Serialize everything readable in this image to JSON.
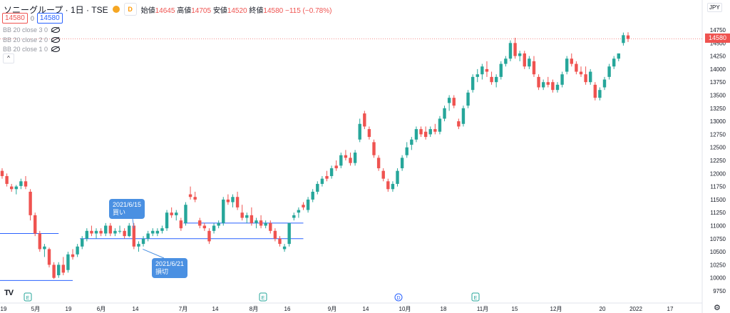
{
  "header": {
    "symbol": "ソニーグループ · 1日 · TSE",
    "dd_label": "D",
    "open_label": "始値",
    "open_value": "14645",
    "high_label": "高値",
    "high_value": "14705",
    "low_label": "安値",
    "low_value": "14520",
    "close_label": "終値",
    "close_value": "14580",
    "change": "−115 (−0.78%)",
    "sell_price": "14580",
    "spread": "0",
    "buy_price": "14580"
  },
  "indicators": [
    "BB 20 close 3 0",
    "BB 20 close 2 0",
    "BB 20 close 1 0"
  ],
  "collapse_icon": "^",
  "currency": "JPY",
  "current_price_label": "14580",
  "tv_logo": "TV",
  "settings_icon": "⚙",
  "colors": {
    "up": "#26a69a",
    "down": "#ef5350",
    "line": "#2962ff",
    "callout": "#4a90e2"
  },
  "callouts": [
    {
      "id": "buy",
      "text": "2021/6/15\n買い"
    },
    {
      "id": "cut",
      "text": "2021/6/21\n損切"
    }
  ],
  "chart_data": {
    "type": "candlestick",
    "y_axis": {
      "min": 9750,
      "max": 14750,
      "ticks": [
        9750,
        10000,
        10250,
        10500,
        10750,
        11000,
        11250,
        11500,
        11750,
        12000,
        12250,
        12500,
        12750,
        13000,
        13250,
        13500,
        13750,
        14000,
        14250,
        14500,
        14750
      ]
    },
    "x_axis": {
      "ticks": [
        "19",
        "5月",
        "19",
        "6月",
        "14",
        "7月",
        "14",
        "8月",
        "16",
        "9月",
        "14",
        "10月",
        "18",
        "11月",
        "15",
        "12月",
        "20",
        "2022",
        "17"
      ]
    },
    "horizontal_lines": [
      {
        "price": 10850,
        "from": 0,
        "to": 12
      },
      {
        "price": 9950,
        "from": 0,
        "to": 15
      },
      {
        "price": 11050,
        "from": 39,
        "to": 64
      },
      {
        "price": 10750,
        "from": 17,
        "to": 64
      }
    ],
    "events": [
      "E",
      "E",
      "D",
      "E"
    ],
    "candles": [
      {
        "o": 12050,
        "h": 12100,
        "l": 11900,
        "c": 11950
      },
      {
        "o": 11950,
        "h": 12000,
        "l": 11750,
        "c": 11800
      },
      {
        "o": 11750,
        "h": 11800,
        "l": 11650,
        "c": 11700
      },
      {
        "o": 11700,
        "h": 11780,
        "l": 11600,
        "c": 11750
      },
      {
        "o": 11760,
        "h": 11900,
        "l": 11700,
        "c": 11850
      },
      {
        "o": 11850,
        "h": 11950,
        "l": 11700,
        "c": 11750
      },
      {
        "o": 11650,
        "h": 11700,
        "l": 11100,
        "c": 11200
      },
      {
        "o": 11200,
        "h": 11250,
        "l": 10800,
        "c": 10850
      },
      {
        "o": 10850,
        "h": 10900,
        "l": 10500,
        "c": 10550
      },
      {
        "o": 10550,
        "h": 10650,
        "l": 10400,
        "c": 10600
      },
      {
        "o": 10550,
        "h": 10580,
        "l": 10200,
        "c": 10250
      },
      {
        "o": 10250,
        "h": 10300,
        "l": 9980,
        "c": 10000
      },
      {
        "o": 10050,
        "h": 10300,
        "l": 10000,
        "c": 10250
      },
      {
        "o": 10250,
        "h": 10400,
        "l": 10050,
        "c": 10100
      },
      {
        "o": 10150,
        "h": 10500,
        "l": 10100,
        "c": 10450
      },
      {
        "o": 10450,
        "h": 10550,
        "l": 10350,
        "c": 10400
      },
      {
        "o": 10450,
        "h": 10650,
        "l": 10400,
        "c": 10600
      },
      {
        "o": 10600,
        "h": 10800,
        "l": 10550,
        "c": 10750
      },
      {
        "o": 10750,
        "h": 10950,
        "l": 10700,
        "c": 10900
      },
      {
        "o": 10900,
        "h": 11000,
        "l": 10800,
        "c": 10850
      },
      {
        "o": 10850,
        "h": 10950,
        "l": 10750,
        "c": 10900
      },
      {
        "o": 10900,
        "h": 10950,
        "l": 10800,
        "c": 10850
      },
      {
        "o": 10850,
        "h": 11050,
        "l": 10800,
        "c": 11000
      },
      {
        "o": 11000,
        "h": 11050,
        "l": 10800,
        "c": 10850
      },
      {
        "o": 10850,
        "h": 10950,
        "l": 10800,
        "c": 10900
      },
      {
        "o": 10900,
        "h": 11000,
        "l": 10850,
        "c": 10900
      },
      {
        "o": 10900,
        "h": 10950,
        "l": 10750,
        "c": 10800
      },
      {
        "o": 10800,
        "h": 11050,
        "l": 10780,
        "c": 11000
      },
      {
        "o": 11000,
        "h": 11050,
        "l": 10550,
        "c": 10600
      },
      {
        "o": 10600,
        "h": 10700,
        "l": 10500,
        "c": 10650
      },
      {
        "o": 10650,
        "h": 10800,
        "l": 10600,
        "c": 10750
      },
      {
        "o": 10750,
        "h": 10900,
        "l": 10700,
        "c": 10850
      },
      {
        "o": 10850,
        "h": 10950,
        "l": 10800,
        "c": 10900
      },
      {
        "o": 10850,
        "h": 10950,
        "l": 10800,
        "c": 10900
      },
      {
        "o": 10900,
        "h": 11000,
        "l": 10850,
        "c": 10950
      },
      {
        "o": 10950,
        "h": 11300,
        "l": 10900,
        "c": 11250
      },
      {
        "o": 11250,
        "h": 11350,
        "l": 11150,
        "c": 11200
      },
      {
        "o": 11200,
        "h": 11300,
        "l": 11100,
        "c": 11250
      },
      {
        "o": 11100,
        "h": 11150,
        "l": 10900,
        "c": 10950
      },
      {
        "o": 11050,
        "h": 11450,
        "l": 11000,
        "c": 11400
      },
      {
        "o": 11600,
        "h": 11750,
        "l": 11500,
        "c": 11550
      },
      {
        "o": 11550,
        "h": 11650,
        "l": 11450,
        "c": 11500
      },
      {
        "o": 11100,
        "h": 11150,
        "l": 10950,
        "c": 11000
      },
      {
        "o": 11000,
        "h": 11050,
        "l": 10900,
        "c": 10950
      },
      {
        "o": 10900,
        "h": 10950,
        "l": 10650,
        "c": 10700
      },
      {
        "o": 10900,
        "h": 11050,
        "l": 10850,
        "c": 11000
      },
      {
        "o": 11000,
        "h": 11100,
        "l": 10950,
        "c": 11050
      },
      {
        "o": 11050,
        "h": 11550,
        "l": 11000,
        "c": 11500
      },
      {
        "o": 11500,
        "h": 11600,
        "l": 11400,
        "c": 11450
      },
      {
        "o": 11450,
        "h": 11600,
        "l": 11350,
        "c": 11550
      },
      {
        "o": 11550,
        "h": 11650,
        "l": 11300,
        "c": 11350
      },
      {
        "o": 11250,
        "h": 11400,
        "l": 11100,
        "c": 11150
      },
      {
        "o": 11150,
        "h": 11250,
        "l": 11050,
        "c": 11200
      },
      {
        "o": 11200,
        "h": 11350,
        "l": 11000,
        "c": 11050
      },
      {
        "o": 11050,
        "h": 11150,
        "l": 10950,
        "c": 11100
      },
      {
        "o": 11100,
        "h": 11200,
        "l": 10950,
        "c": 11000
      },
      {
        "o": 11000,
        "h": 11100,
        "l": 10950,
        "c": 11050
      },
      {
        "o": 11050,
        "h": 11100,
        "l": 10850,
        "c": 10900
      },
      {
        "o": 10900,
        "h": 10950,
        "l": 10700,
        "c": 10750
      },
      {
        "o": 10750,
        "h": 10800,
        "l": 10600,
        "c": 10650
      },
      {
        "o": 10550,
        "h": 10650,
        "l": 10500,
        "c": 10600
      },
      {
        "o": 10650,
        "h": 11050,
        "l": 10600,
        "c": 11050
      },
      {
        "o": 11150,
        "h": 11250,
        "l": 11100,
        "c": 11200
      },
      {
        "o": 11250,
        "h": 11350,
        "l": 11150,
        "c": 11300
      },
      {
        "o": 11400,
        "h": 11450,
        "l": 11300,
        "c": 11350
      },
      {
        "o": 11300,
        "h": 11550,
        "l": 11250,
        "c": 11500
      },
      {
        "o": 11500,
        "h": 11700,
        "l": 11450,
        "c": 11650
      },
      {
        "o": 11650,
        "h": 11850,
        "l": 11600,
        "c": 11800
      },
      {
        "o": 11800,
        "h": 11950,
        "l": 11750,
        "c": 11900
      },
      {
        "o": 11950,
        "h": 12050,
        "l": 11850,
        "c": 11900
      },
      {
        "o": 11950,
        "h": 12150,
        "l": 11900,
        "c": 12100
      },
      {
        "o": 12150,
        "h": 12250,
        "l": 12050,
        "c": 12100
      },
      {
        "o": 12150,
        "h": 12400,
        "l": 12100,
        "c": 12350
      },
      {
        "o": 12350,
        "h": 12450,
        "l": 12250,
        "c": 12300
      },
      {
        "o": 12300,
        "h": 12400,
        "l": 12150,
        "c": 12200
      },
      {
        "o": 12200,
        "h": 12450,
        "l": 12150,
        "c": 12400
      },
      {
        "o": 12650,
        "h": 13050,
        "l": 12600,
        "c": 12950
      },
      {
        "o": 13150,
        "h": 13200,
        "l": 12850,
        "c": 12900
      },
      {
        "o": 12850,
        "h": 12900,
        "l": 12650,
        "c": 12700
      },
      {
        "o": 12600,
        "h": 12650,
        "l": 12300,
        "c": 12350
      },
      {
        "o": 12300,
        "h": 12350,
        "l": 12050,
        "c": 12100
      },
      {
        "o": 12050,
        "h": 12100,
        "l": 11850,
        "c": 11900
      },
      {
        "o": 11850,
        "h": 11900,
        "l": 11650,
        "c": 11700
      },
      {
        "o": 11700,
        "h": 11850,
        "l": 11650,
        "c": 11800
      },
      {
        "o": 11800,
        "h": 12100,
        "l": 11750,
        "c": 12050
      },
      {
        "o": 12100,
        "h": 12350,
        "l": 12050,
        "c": 12300
      },
      {
        "o": 12350,
        "h": 12600,
        "l": 12300,
        "c": 12500
      },
      {
        "o": 12550,
        "h": 12700,
        "l": 12450,
        "c": 12650
      },
      {
        "o": 12650,
        "h": 12900,
        "l": 12600,
        "c": 12850
      },
      {
        "o": 12850,
        "h": 12900,
        "l": 12700,
        "c": 12750
      },
      {
        "o": 12800,
        "h": 12900,
        "l": 12650,
        "c": 12700
      },
      {
        "o": 12750,
        "h": 12900,
        "l": 12700,
        "c": 12850
      },
      {
        "o": 12850,
        "h": 12950,
        "l": 12750,
        "c": 12800
      },
      {
        "o": 12800,
        "h": 13100,
        "l": 12750,
        "c": 13050
      },
      {
        "o": 13050,
        "h": 13300,
        "l": 13000,
        "c": 13250
      },
      {
        "o": 13350,
        "h": 13500,
        "l": 13200,
        "c": 13450
      },
      {
        "o": 13450,
        "h": 13500,
        "l": 13250,
        "c": 13300
      },
      {
        "o": 13000,
        "h": 13050,
        "l": 12850,
        "c": 12900
      },
      {
        "o": 12950,
        "h": 13300,
        "l": 12900,
        "c": 13250
      },
      {
        "o": 13300,
        "h": 13600,
        "l": 13250,
        "c": 13550
      },
      {
        "o": 13600,
        "h": 13900,
        "l": 13550,
        "c": 13850
      },
      {
        "o": 13850,
        "h": 14000,
        "l": 13750,
        "c": 13900
      },
      {
        "o": 13900,
        "h": 14100,
        "l": 13800,
        "c": 14050
      },
      {
        "o": 14000,
        "h": 14150,
        "l": 13850,
        "c": 13950
      },
      {
        "o": 13850,
        "h": 13950,
        "l": 13700,
        "c": 13750
      },
      {
        "o": 13750,
        "h": 13900,
        "l": 13650,
        "c": 13850
      },
      {
        "o": 13850,
        "h": 14150,
        "l": 13800,
        "c": 14100
      },
      {
        "o": 14100,
        "h": 14250,
        "l": 14050,
        "c": 14200
      },
      {
        "o": 14200,
        "h": 14550,
        "l": 14150,
        "c": 14500
      },
      {
        "o": 14500,
        "h": 14600,
        "l": 14200,
        "c": 14250
      },
      {
        "o": 14250,
        "h": 14350,
        "l": 14150,
        "c": 14300
      },
      {
        "o": 14300,
        "h": 14350,
        "l": 14000,
        "c": 14050
      },
      {
        "o": 14050,
        "h": 14250,
        "l": 14000,
        "c": 14200
      },
      {
        "o": 14150,
        "h": 14250,
        "l": 13850,
        "c": 13900
      },
      {
        "o": 13850,
        "h": 13900,
        "l": 13600,
        "c": 13650
      },
      {
        "o": 13650,
        "h": 13800,
        "l": 13600,
        "c": 13750
      },
      {
        "o": 13750,
        "h": 13850,
        "l": 13650,
        "c": 13700
      },
      {
        "o": 13750,
        "h": 13800,
        "l": 13550,
        "c": 13600
      },
      {
        "o": 13600,
        "h": 13750,
        "l": 13550,
        "c": 13700
      },
      {
        "o": 13700,
        "h": 13950,
        "l": 13650,
        "c": 13900
      },
      {
        "o": 13950,
        "h": 14250,
        "l": 13900,
        "c": 14200
      },
      {
        "o": 14200,
        "h": 14300,
        "l": 14050,
        "c": 14100
      },
      {
        "o": 14100,
        "h": 14150,
        "l": 13900,
        "c": 13950
      },
      {
        "o": 13950,
        "h": 14050,
        "l": 13850,
        "c": 13900
      },
      {
        "o": 13900,
        "h": 14050,
        "l": 13700,
        "c": 13750
      },
      {
        "o": 13750,
        "h": 14000,
        "l": 13700,
        "c": 13950
      },
      {
        "o": 13700,
        "h": 13750,
        "l": 13400,
        "c": 13450
      },
      {
        "o": 13450,
        "h": 13650,
        "l": 13400,
        "c": 13600
      },
      {
        "o": 13650,
        "h": 13850,
        "l": 13600,
        "c": 13800
      },
      {
        "o": 13850,
        "h": 14100,
        "l": 13800,
        "c": 14050
      },
      {
        "o": 14050,
        "h": 14250,
        "l": 14000,
        "c": 14200
      },
      {
        "o": 14200,
        "h": 14300,
        "l": 14150,
        "c": 14300
      },
      {
        "o": 14500,
        "h": 14700,
        "l": 14450,
        "c": 14650
      },
      {
        "o": 14645,
        "h": 14705,
        "l": 14520,
        "c": 14580
      }
    ]
  }
}
